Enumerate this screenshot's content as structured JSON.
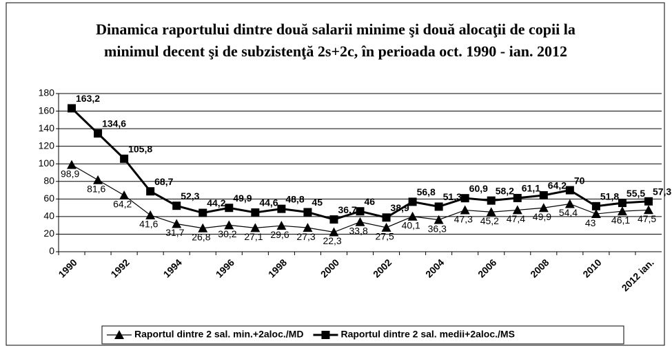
{
  "chart_data": {
    "type": "line",
    "title": [
      "Dinamica raportului dintre două salarii minime şi două alocaţii de copii la",
      "minimul decent şi de subzistenţă 2s+2c, în perioada oct. 1990 - ian. 2012"
    ],
    "categories": [
      "1990",
      null,
      "1992",
      null,
      "1994",
      null,
      "1996",
      null,
      "1998",
      null,
      "2000",
      null,
      "2002",
      null,
      "2004",
      null,
      "2006",
      null,
      "2008",
      null,
      "2010",
      null,
      "2012 ian."
    ],
    "series": [
      {
        "name": "Raportul dintre 2 sal. min.+2aloc./MD",
        "color": "#000000",
        "marker": "triangle",
        "values": [
          98.9,
          81.6,
          64.2,
          41.6,
          31.7,
          26.8,
          30.2,
          27.1,
          29.6,
          27.3,
          22.3,
          33.8,
          27.5,
          40.1,
          36.3,
          47.3,
          45.2,
          47.4,
          49.9,
          54.4,
          43,
          46.1,
          47.5
        ],
        "value_labels": [
          "98,9",
          "81,6",
          "64,2",
          "41,6",
          "31,7",
          "26,8",
          "30,2",
          "27,1",
          "29,6",
          "27,3",
          "22,3",
          "33,8",
          "27,5",
          "40,1",
          "36,3",
          "47,3",
          "45,2",
          "47,4",
          "49,9",
          "54,4",
          "43",
          "46,1",
          "47,5"
        ]
      },
      {
        "name": "Raportul dintre 2 sal. medii+2aloc./MS",
        "color": "#000000",
        "marker": "square",
        "values": [
          163.2,
          134.6,
          105.8,
          68.7,
          52.3,
          44.2,
          49.9,
          44.6,
          48.8,
          45,
          36.7,
          46,
          38.9,
          56.8,
          51.3,
          60.9,
          58.2,
          61.1,
          64.2,
          70,
          51.8,
          55.5,
          57.3
        ],
        "value_labels": [
          "163,2",
          "134,6",
          "105,8",
          "68,7",
          "52,3",
          "44,2",
          "49,9",
          "44,6",
          "48,8",
          "45",
          "36,7",
          "46",
          "38,9",
          "56,8",
          "51,3",
          "60,9",
          "58,2",
          "61,1",
          "64,2",
          "70",
          "51,8",
          "55,5",
          "57,3"
        ]
      }
    ],
    "ylim": [
      0,
      180
    ],
    "yticks": [
      0,
      20,
      40,
      60,
      80,
      100,
      120,
      140,
      160,
      180
    ],
    "grid": true,
    "legend": "bottom"
  }
}
